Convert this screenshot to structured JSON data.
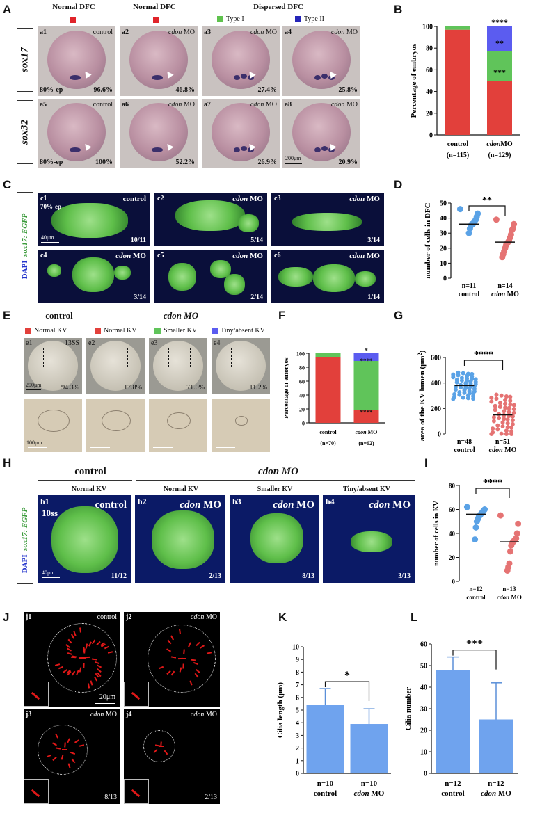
{
  "panels": {
    "A": "A",
    "B": "B",
    "C": "C",
    "D": "D",
    "E": "E",
    "F": "F",
    "G": "G",
    "H": "H",
    "I": "I",
    "J": "J",
    "K": "K",
    "L": "L"
  },
  "A": {
    "headers": [
      "Normal DFC",
      "Normal DFC",
      "Dispersed DFC"
    ],
    "legend": [
      "Type I",
      "Type II"
    ],
    "rows": [
      "sox17",
      "sox32"
    ],
    "embryos": [
      {
        "id": "a1",
        "cond": "control",
        "pct": "96.6%",
        "stage": "80%-ep"
      },
      {
        "id": "a2",
        "cond": "cdon MO",
        "pct": "46.8%"
      },
      {
        "id": "a3",
        "cond": "cdon MO",
        "pct": "27.4%"
      },
      {
        "id": "a4",
        "cond": "cdon MO",
        "pct": "25.8%"
      },
      {
        "id": "a5",
        "cond": "control",
        "pct": "100%",
        "stage": "80%-ep"
      },
      {
        "id": "a6",
        "cond": "cdon MO",
        "pct": "52.2%"
      },
      {
        "id": "a7",
        "cond": "cdon MO",
        "pct": "26.9%"
      },
      {
        "id": "a8",
        "cond": "cdon MO",
        "pct": "20.9%",
        "scale": "200μm"
      }
    ]
  },
  "chart_data": [
    {
      "panel": "B",
      "type": "bar",
      "stacked": true,
      "ylabel": "Percentage of embryos",
      "ylim": [
        0,
        100
      ],
      "yticks": [
        0,
        20,
        40,
        60,
        80,
        100
      ],
      "categories": [
        "control",
        "cdonMO"
      ],
      "n_labels": [
        "(n=115)",
        "(n=129)"
      ],
      "series": [
        {
          "color": "#e2403b",
          "values": [
            97,
            50
          ]
        },
        {
          "color": "#60c45a",
          "values": [
            3,
            27
          ]
        },
        {
          "color": "#5b5cf0",
          "values": [
            0,
            23
          ]
        }
      ],
      "annotations": [
        "****",
        "**",
        "***"
      ]
    },
    {
      "panel": "D",
      "type": "scatter",
      "ylabel": "number of cells in DFC",
      "ylim": [
        0,
        50
      ],
      "yticks": [
        0,
        10,
        20,
        30,
        40,
        50
      ],
      "groups": [
        {
          "n": "n=11",
          "label": "control",
          "color": "#5aa2e6",
          "mean": 36,
          "values": [
            46,
            43,
            41,
            39,
            38,
            37,
            36,
            36,
            35,
            33,
            30
          ]
        },
        {
          "n": "n=14",
          "label": "cdon MO",
          "color": "#e57373",
          "mean": 24,
          "values": [
            39,
            36,
            33,
            32,
            29,
            27,
            25,
            24,
            23,
            22,
            20,
            18,
            16,
            14
          ]
        }
      ],
      "sig": "**"
    },
    {
      "panel": "F",
      "type": "bar",
      "stacked": true,
      "ylabel": "Percentage of embryos",
      "ylim": [
        0,
        100
      ],
      "yticks": [
        0,
        20,
        40,
        60,
        80,
        100
      ],
      "categories": [
        "control",
        "cdon MO"
      ],
      "n_labels": [
        "(n=70)",
        "(n=62)"
      ],
      "series": [
        {
          "color": "#e2403b",
          "values": [
            94,
            18
          ]
        },
        {
          "color": "#60c45a",
          "values": [
            6,
            71
          ]
        },
        {
          "color": "#5b5cf0",
          "values": [
            0,
            11
          ]
        }
      ],
      "annotations": [
        "*",
        "****",
        "****"
      ]
    },
    {
      "panel": "G",
      "type": "scatter",
      "ylabel": "area of the KV lumen (μm²)",
      "ylim": [
        0,
        600
      ],
      "yticks": [
        0,
        200,
        400,
        600
      ],
      "groups": [
        {
          "n": "n=48",
          "label": "control",
          "color": "#5aa2e6",
          "mean": 380
        },
        {
          "n": "n=51",
          "label": "cdon MO",
          "color": "#e57373",
          "mean": 150
        }
      ],
      "sig": "****"
    },
    {
      "panel": "I",
      "type": "scatter",
      "ylabel": "number of cells in KV",
      "ylim": [
        0,
        80
      ],
      "yticks": [
        0,
        20,
        40,
        60,
        80
      ],
      "groups": [
        {
          "n": "n=12",
          "label": "control",
          "color": "#5aa2e6",
          "mean": 56,
          "values": [
            62,
            60,
            59,
            58,
            57,
            56,
            55,
            54,
            52,
            50,
            45,
            35
          ]
        },
        {
          "n": "n=13",
          "label": "cdon MO",
          "color": "#e57373",
          "mean": 33,
          "values": [
            55,
            48,
            40,
            36,
            35,
            34,
            33,
            32,
            30,
            25,
            15,
            12,
            9
          ]
        }
      ],
      "sig": "****"
    },
    {
      "panel": "K",
      "type": "bar",
      "ylabel": "Cilia length (μm)",
      "ylim": [
        0,
        10
      ],
      "yticks": [
        0,
        1,
        2,
        3,
        4,
        5,
        6,
        7,
        8,
        9,
        10
      ],
      "categories": [
        "control",
        "cdon MO"
      ],
      "n_labels": [
        "n=10",
        "n=10"
      ],
      "values": [
        5.4,
        3.9
      ],
      "errors": [
        1.3,
        1.2
      ],
      "sig": "*"
    },
    {
      "panel": "L",
      "type": "bar",
      "ylabel": "Cilia number",
      "ylim": [
        0,
        60
      ],
      "yticks": [
        0,
        10,
        20,
        30,
        40,
        50,
        60
      ],
      "categories": [
        "control",
        "cdon MO"
      ],
      "n_labels": [
        "n=12",
        "n=12"
      ],
      "values": [
        48,
        25
      ],
      "errors": [
        6,
        17
      ],
      "sig": "***"
    }
  ],
  "C": {
    "side_label_a": "DAPI",
    "side_label_b": "sox17: EGFP",
    "images": [
      {
        "id": "c1",
        "cond": "control",
        "ratio": "10/11",
        "stage": "70%-ep",
        "scale": "40μm"
      },
      {
        "id": "c2",
        "cond": "cdon MO",
        "ratio": "5/14"
      },
      {
        "id": "c3",
        "cond": "cdon MO",
        "ratio": "3/14"
      },
      {
        "id": "c4",
        "cond": "cdon MO",
        "ratio": "3/14"
      },
      {
        "id": "c5",
        "cond": "cdon MO",
        "ratio": "2/14"
      },
      {
        "id": "c6",
        "cond": "cdon MO",
        "ratio": "1/14"
      }
    ]
  },
  "E": {
    "group_control": "control",
    "group_mo": "cdon MO",
    "legend": [
      "Normal KV",
      "Normal KV",
      "Smaller KV",
      "Tiny/absent KV"
    ],
    "images": [
      {
        "id": "e1",
        "pct": "94.3%",
        "stage": "13SS",
        "scale": "200μm"
      },
      {
        "id": "e2",
        "pct": "17.8%"
      },
      {
        "id": "e3",
        "pct": "71.0%"
      },
      {
        "id": "e4",
        "pct": "11.2%"
      }
    ],
    "zoom_scale": "100μm"
  },
  "H": {
    "group_control": "control",
    "group_mo": "cdon MO",
    "subheads": [
      "Normal KV",
      "Normal KV",
      "Smaller KV",
      "Tiny/absent KV"
    ],
    "side_label_a": "DAPI",
    "side_label_b": "sox17: EGFP",
    "images": [
      {
        "id": "h1",
        "cond": "control",
        "ratio": "11/12",
        "stage": "10ss",
        "scale": "40μm"
      },
      {
        "id": "h2",
        "cond": "cdon MO",
        "ratio": "2/13"
      },
      {
        "id": "h3",
        "cond": "cdon MO",
        "ratio": "8/13"
      },
      {
        "id": "h4",
        "cond": "cdon MO",
        "ratio": "3/13"
      }
    ]
  },
  "J": {
    "images": [
      {
        "id": "j1",
        "cond": "control",
        "scale": "20μm"
      },
      {
        "id": "j2",
        "cond": "cdon MO"
      },
      {
        "id": "j3",
        "cond": "cdon MO",
        "ratio": "8/13"
      },
      {
        "id": "j4",
        "cond": "cdon MO",
        "ratio": "2/13"
      }
    ]
  }
}
